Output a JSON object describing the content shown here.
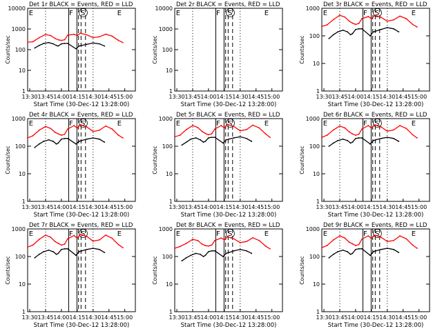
{
  "colors": {
    "background": "#ffffff",
    "events": "#000000",
    "lld": "#ff0000",
    "axes": "#000000"
  },
  "chart_data": [
    {
      "type": "line",
      "title": "Det 1r BLACK = Events, RED = LLD",
      "xlabel": "Start Time (30-Dec-12 13:28:00)",
      "ylabel": "Counts/sec",
      "ylog": true,
      "ylim": [
        1,
        10000
      ],
      "yticks": [
        1,
        10,
        100,
        1000,
        10000
      ],
      "xlim": [
        13.467,
        15.167
      ],
      "xtick_labels": [
        "13:30",
        "13:45",
        "14:00",
        "14:15",
        "14:30",
        "14:45",
        "15:00"
      ],
      "markers": [
        "E",
        "F",
        "S",
        "E"
      ],
      "series": [
        {
          "name": "RED = LLD",
          "x": [
            13.467,
            13.55,
            13.65,
            13.75,
            13.83,
            13.9,
            13.95,
            14.0,
            14.05,
            14.1,
            14.2,
            14.25,
            14.3,
            14.4,
            14.5,
            14.6,
            14.7,
            14.8,
            14.9,
            14.97
          ],
          "values": [
            230,
            240,
            380,
            540,
            480,
            350,
            300,
            280,
            300,
            500,
            550,
            480,
            620,
            520,
            380,
            420,
            560,
            450,
            280,
            220
          ]
        },
        {
          "name": "BLACK = Events",
          "x": [
            13.58,
            13.65,
            13.72,
            13.8,
            13.87,
            13.92,
            13.95,
            14.0,
            14.05,
            14.1,
            14.23,
            14.28,
            14.32,
            14.4,
            14.5,
            14.6,
            14.68
          ],
          "values": [
            120,
            160,
            200,
            220,
            190,
            160,
            150,
            190,
            200,
            200,
            110,
            150,
            160,
            180,
            210,
            190,
            150
          ]
        }
      ]
    },
    {
      "type": "line",
      "title": "Det 2r BLACK = Events, RED = LLD",
      "xlabel": "Start Time (30-Dec-12 13:28:00)",
      "ylabel": "Counts/sec",
      "ylog": true,
      "ylim": [
        1,
        10000
      ],
      "yticks": [
        1,
        10,
        100,
        1000,
        10000
      ],
      "xlim": [
        13.467,
        15.167
      ],
      "xtick_labels": [
        "13:30",
        "13:45",
        "14:00",
        "14:15",
        "14:30",
        "14:45",
        "15:00"
      ],
      "markers": [
        "E",
        "F",
        "S",
        "E"
      ],
      "series": []
    },
    {
      "type": "line",
      "title": "Det 3r BLACK = Events, RED = LLD",
      "xlabel": "Start Time (30-Dec-12 13:28:00)",
      "ylabel": "Counts/sec",
      "ylog": true,
      "ylim": [
        1,
        1000
      ],
      "yticks": [
        1,
        10,
        100,
        1000
      ],
      "xlim": [
        13.467,
        15.167
      ],
      "xtick_labels": [
        "13:30",
        "13:45",
        "14:00",
        "14:15",
        "14:30",
        "14:45",
        "15:00"
      ],
      "markers": [
        "E",
        "F",
        "S",
        "E"
      ],
      "series": [
        {
          "name": "RED = LLD",
          "x": [
            13.467,
            13.55,
            13.65,
            13.75,
            13.83,
            13.9,
            13.95,
            14.0,
            14.05,
            14.1,
            14.2,
            14.25,
            14.3,
            14.4,
            14.5,
            14.6,
            14.7,
            14.8,
            14.9,
            14.97
          ],
          "values": [
            220,
            250,
            390,
            560,
            480,
            340,
            290,
            260,
            280,
            420,
            500,
            420,
            560,
            470,
            340,
            380,
            520,
            420,
            260,
            210
          ]
        },
        {
          "name": "BLACK = Events",
          "x": [
            13.58,
            13.65,
            13.72,
            13.8,
            13.87,
            13.92,
            13.95,
            14.0,
            14.05,
            14.1,
            14.23,
            14.28,
            14.32,
            14.4,
            14.5,
            14.6,
            14.68
          ],
          "values": [
            80,
            110,
            140,
            160,
            140,
            110,
            120,
            170,
            180,
            180,
            100,
            140,
            150,
            170,
            200,
            180,
            140
          ]
        }
      ]
    },
    {
      "type": "line",
      "title": "Det 4r BLACK = Events, RED = LLD",
      "xlabel": "Start Time (30-Dec-12 13:28:00)",
      "ylabel": "Counts/sec",
      "ylog": true,
      "ylim": [
        1,
        1000
      ],
      "yticks": [
        1,
        10,
        100,
        1000
      ],
      "xlim": [
        13.467,
        15.167
      ],
      "xtick_labels": [
        "13:30",
        "13:45",
        "14:00",
        "14:15",
        "14:30",
        "14:45",
        "15:00"
      ],
      "markers": [
        "E",
        "F",
        "S",
        "E"
      ],
      "series": [
        {
          "name": "RED = LLD",
          "x": [
            13.467,
            13.55,
            13.65,
            13.75,
            13.83,
            13.9,
            13.95,
            14.0,
            14.05,
            14.1,
            14.2,
            14.25,
            14.3,
            14.4,
            14.5,
            14.6,
            14.7,
            14.8,
            14.9,
            14.97
          ],
          "values": [
            200,
            240,
            380,
            520,
            440,
            320,
            280,
            250,
            270,
            420,
            560,
            450,
            600,
            500,
            340,
            380,
            540,
            420,
            250,
            200
          ]
        },
        {
          "name": "BLACK = Events",
          "x": [
            13.58,
            13.65,
            13.72,
            13.8,
            13.87,
            13.92,
            13.95,
            14.0,
            14.05,
            14.1,
            14.23,
            14.28,
            14.32,
            14.4,
            14.5,
            14.6,
            14.68
          ],
          "values": [
            90,
            120,
            150,
            170,
            150,
            120,
            130,
            180,
            190,
            190,
            120,
            150,
            160,
            180,
            200,
            180,
            140
          ]
        }
      ]
    },
    {
      "type": "line",
      "title": "Det 5r BLACK = Events, RED = LLD",
      "xlabel": "Start Time (30-Dec-12 13:28:00)",
      "ylabel": "Counts/sec",
      "ylog": true,
      "ylim": [
        1,
        1000
      ],
      "yticks": [
        1,
        10,
        100,
        1000
      ],
      "xlim": [
        13.467,
        15.167
      ],
      "xtick_labels": [
        "13:30",
        "13:45",
        "14:00",
        "14:15",
        "14:30",
        "14:45",
        "15:00"
      ],
      "markers": [
        "E",
        "F",
        "S",
        "E"
      ],
      "series": [
        {
          "name": "RED = LLD",
          "x": [
            13.467,
            13.55,
            13.65,
            13.75,
            13.83,
            13.9,
            13.95,
            14.0,
            14.05,
            14.1,
            14.2,
            14.25,
            14.3,
            14.4,
            14.5,
            14.6,
            14.7,
            14.8,
            14.9,
            14.97
          ],
          "values": [
            220,
            250,
            400,
            560,
            480,
            340,
            290,
            260,
            280,
            420,
            560,
            460,
            620,
            520,
            360,
            400,
            580,
            460,
            280,
            210
          ]
        },
        {
          "name": "BLACK = Events",
          "x": [
            13.58,
            13.65,
            13.72,
            13.8,
            13.87,
            13.92,
            13.95,
            14.0,
            14.05,
            14.1,
            14.23,
            14.28,
            14.32,
            14.4,
            14.5,
            14.6,
            14.68
          ],
          "values": [
            110,
            140,
            180,
            200,
            170,
            140,
            150,
            200,
            210,
            210,
            130,
            170,
            180,
            200,
            220,
            190,
            150
          ]
        }
      ]
    },
    {
      "type": "line",
      "title": "Det 6r BLACK = Events, RED = LLD",
      "xlabel": "Start Time (30-Dec-12 13:28:00)",
      "ylabel": "Counts/sec",
      "ylog": true,
      "ylim": [
        1,
        1000
      ],
      "yticks": [
        1,
        10,
        100,
        1000
      ],
      "xlim": [
        13.467,
        15.167
      ],
      "xtick_labels": [
        "13:30",
        "13:45",
        "14:00",
        "14:15",
        "14:30",
        "14:45",
        "15:00"
      ],
      "markers": [
        "E",
        "F",
        "S",
        "E"
      ],
      "series": [
        {
          "name": "RED = LLD",
          "x": [
            13.467,
            13.55,
            13.65,
            13.75,
            13.83,
            13.9,
            13.95,
            14.0,
            14.05,
            14.1,
            14.2,
            14.25,
            14.3,
            14.4,
            14.5,
            14.6,
            14.7,
            14.8,
            14.9,
            14.97
          ],
          "values": [
            210,
            250,
            390,
            540,
            460,
            330,
            280,
            250,
            270,
            420,
            560,
            450,
            600,
            500,
            350,
            390,
            560,
            440,
            260,
            200
          ]
        },
        {
          "name": "BLACK = Events",
          "x": [
            13.58,
            13.65,
            13.72,
            13.8,
            13.87,
            13.92,
            13.95,
            14.0,
            14.05,
            14.1,
            14.23,
            14.28,
            14.32,
            14.4,
            14.5,
            14.6,
            14.68
          ],
          "values": [
            100,
            130,
            160,
            180,
            160,
            130,
            140,
            190,
            200,
            200,
            120,
            160,
            170,
            190,
            210,
            190,
            150
          ]
        }
      ]
    },
    {
      "type": "line",
      "title": "Det 7r BLACK = Events, RED = LLD",
      "xlabel": "Start Time (30-Dec-12 13:28:00)",
      "ylabel": "Counts/sec",
      "ylog": true,
      "ylim": [
        1,
        1000
      ],
      "yticks": [
        1,
        10,
        100,
        1000
      ],
      "xlim": [
        13.467,
        15.167
      ],
      "xtick_labels": [
        "13:30",
        "13:45",
        "14:00",
        "14:15",
        "14:30",
        "14:45",
        "15:00"
      ],
      "markers": [
        "E",
        "F",
        "S",
        "E"
      ],
      "series": [
        {
          "name": "RED = LLD",
          "x": [
            13.467,
            13.55,
            13.65,
            13.75,
            13.83,
            13.9,
            13.95,
            14.0,
            14.05,
            14.1,
            14.2,
            14.25,
            14.3,
            14.4,
            14.5,
            14.6,
            14.7,
            14.8,
            14.9,
            14.97
          ],
          "values": [
            220,
            260,
            420,
            600,
            500,
            350,
            300,
            260,
            280,
            440,
            580,
            460,
            640,
            540,
            360,
            400,
            600,
            460,
            270,
            210
          ]
        },
        {
          "name": "BLACK = Events",
          "x": [
            13.58,
            13.65,
            13.72,
            13.8,
            13.87,
            13.92,
            13.95,
            14.0,
            14.05,
            14.1,
            14.23,
            14.28,
            14.32,
            14.4,
            14.5,
            14.6,
            14.68
          ],
          "values": [
            90,
            120,
            150,
            170,
            150,
            120,
            130,
            180,
            190,
            190,
            110,
            150,
            160,
            180,
            200,
            180,
            140
          ]
        }
      ]
    },
    {
      "type": "line",
      "title": "Det 8r BLACK = Events, RED = LLD",
      "xlabel": "Start Time (30-Dec-12 13:28:00)",
      "ylabel": "Counts/sec",
      "ylog": true,
      "ylim": [
        1,
        1000
      ],
      "yticks": [
        1,
        10,
        100,
        1000
      ],
      "xlim": [
        13.467,
        15.167
      ],
      "xtick_labels": [
        "13:30",
        "13:45",
        "14:00",
        "14:15",
        "14:30",
        "14:45",
        "15:00"
      ],
      "markers": [
        "E",
        "F",
        "S",
        "E"
      ],
      "series": [
        {
          "name": "RED = LLD",
          "x": [
            13.467,
            13.55,
            13.65,
            13.75,
            13.83,
            13.9,
            13.95,
            14.0,
            14.05,
            14.1,
            14.2,
            14.25,
            14.3,
            14.4,
            14.5,
            14.6,
            14.7,
            14.8,
            14.9,
            14.97
          ],
          "values": [
            200,
            230,
            300,
            420,
            380,
            280,
            250,
            240,
            260,
            380,
            470,
            400,
            520,
            440,
            320,
            350,
            480,
            380,
            240,
            190
          ]
        },
        {
          "name": "BLACK = Events",
          "x": [
            13.58,
            13.65,
            13.72,
            13.8,
            13.87,
            13.92,
            13.95,
            14.0,
            14.05,
            14.1,
            14.23,
            14.28,
            14.32,
            14.4,
            14.5,
            14.6,
            14.68
          ],
          "values": [
            70,
            90,
            110,
            130,
            120,
            100,
            110,
            150,
            160,
            160,
            100,
            130,
            140,
            160,
            180,
            160,
            130
          ]
        }
      ]
    },
    {
      "type": "line",
      "title": "Det 9r BLACK = Events, RED = LLD",
      "xlabel": "Start Time (30-Dec-12 13:28:00)",
      "ylabel": "Counts/sec",
      "ylog": true,
      "ylim": [
        1,
        1000
      ],
      "yticks": [
        1,
        10,
        100,
        1000
      ],
      "xlim": [
        13.467,
        15.167
      ],
      "xtick_labels": [
        "13:30",
        "13:45",
        "14:00",
        "14:15",
        "14:30",
        "14:45",
        "15:00"
      ],
      "markers": [
        "E",
        "F",
        "S",
        "E"
      ],
      "series": [
        {
          "name": "RED = LLD",
          "x": [
            13.467,
            13.55,
            13.65,
            13.75,
            13.83,
            13.9,
            13.95,
            14.0,
            14.05,
            14.1,
            14.2,
            14.25,
            14.3,
            14.4,
            14.5,
            14.6,
            14.7,
            14.8,
            14.9,
            14.97
          ],
          "values": [
            210,
            250,
            400,
            560,
            470,
            330,
            290,
            250,
            270,
            430,
            560,
            450,
            600,
            500,
            350,
            380,
            560,
            440,
            260,
            200
          ]
        },
        {
          "name": "BLACK = Events",
          "x": [
            13.58,
            13.65,
            13.72,
            13.8,
            13.87,
            13.92,
            13.95,
            14.0,
            14.05,
            14.1,
            14.23,
            14.28,
            14.32,
            14.4,
            14.5,
            14.6,
            14.68
          ],
          "values": [
            90,
            120,
            150,
            170,
            150,
            120,
            130,
            180,
            190,
            190,
            110,
            150,
            160,
            180,
            200,
            180,
            140
          ]
        }
      ]
    }
  ]
}
